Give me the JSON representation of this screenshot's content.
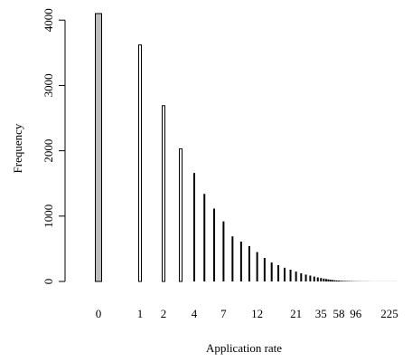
{
  "chart_data": {
    "type": "bar",
    "xlabel": "Application rate",
    "ylabel": "Frequency",
    "ylim": [
      0,
      4100
    ],
    "y_ticks": [
      0,
      1000,
      2000,
      3000,
      4000
    ],
    "x_tick_labels": [
      "0",
      "1",
      "2",
      "4",
      "7",
      "12",
      "21",
      "35",
      "58",
      "96",
      "225"
    ],
    "x_tick_label_bar_index": [
      0,
      1,
      2,
      4,
      7,
      11,
      17,
      23,
      31,
      39,
      55
    ],
    "bar_fill_first": "#bdbdbd",
    "bar_fill": "#ffffff",
    "values": [
      4100,
      3620,
      2690,
      2030,
      1660,
      1340,
      1115,
      920,
      690,
      610,
      540,
      450,
      360,
      290,
      250,
      210,
      180,
      150,
      125,
      105,
      90,
      75,
      62,
      52,
      44,
      37,
      31,
      26,
      22,
      18,
      15,
      13,
      11,
      9,
      8,
      7,
      6,
      5,
      4,
      4,
      3,
      3,
      2,
      2,
      2,
      2,
      1,
      1,
      1,
      1,
      1,
      1,
      1,
      1,
      1,
      1,
      1,
      1,
      1
    ]
  }
}
